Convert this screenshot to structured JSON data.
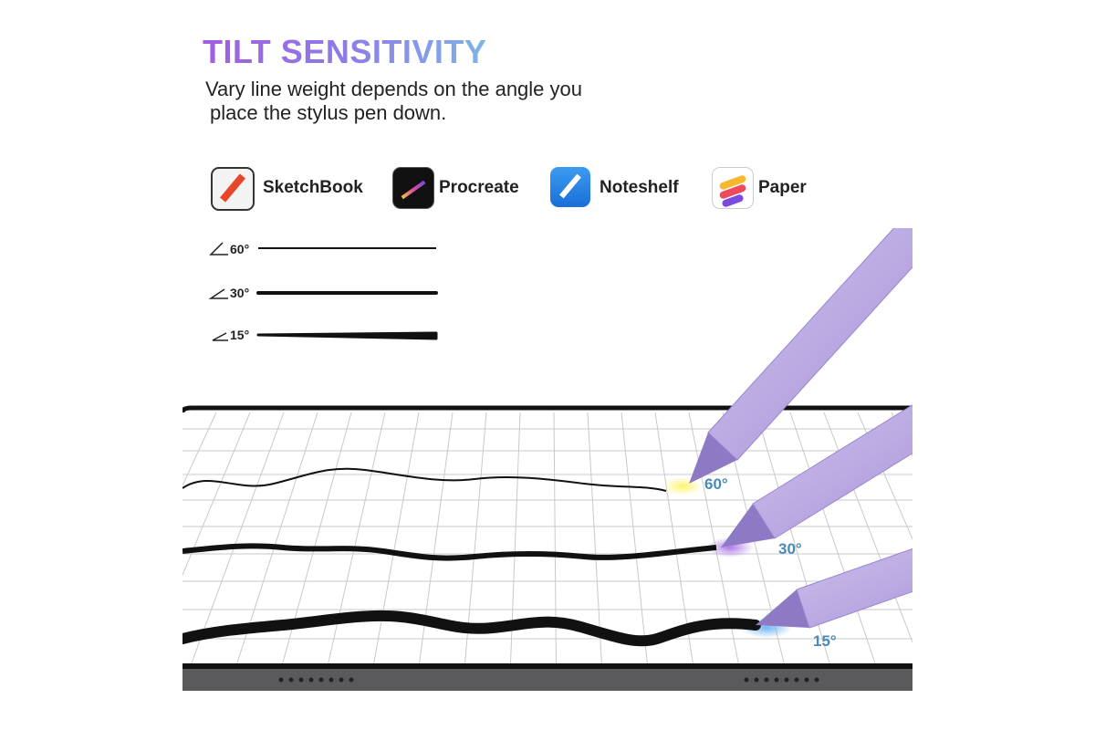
{
  "header": {
    "title": "TILT SENSITIVITY",
    "subtitle_lines": [
      "Vary line weight depends on the angle you",
      "place the stylus pen down."
    ]
  },
  "apps": [
    {
      "name": "SketchBook"
    },
    {
      "name": "Procreate"
    },
    {
      "name": "Noteshelf"
    },
    {
      "name": "Paper"
    }
  ],
  "angle_samples": [
    {
      "label": "60°"
    },
    {
      "label": "30°"
    },
    {
      "label": "15°"
    }
  ],
  "pen_labels": [
    "60°",
    "30°",
    "15°"
  ]
}
